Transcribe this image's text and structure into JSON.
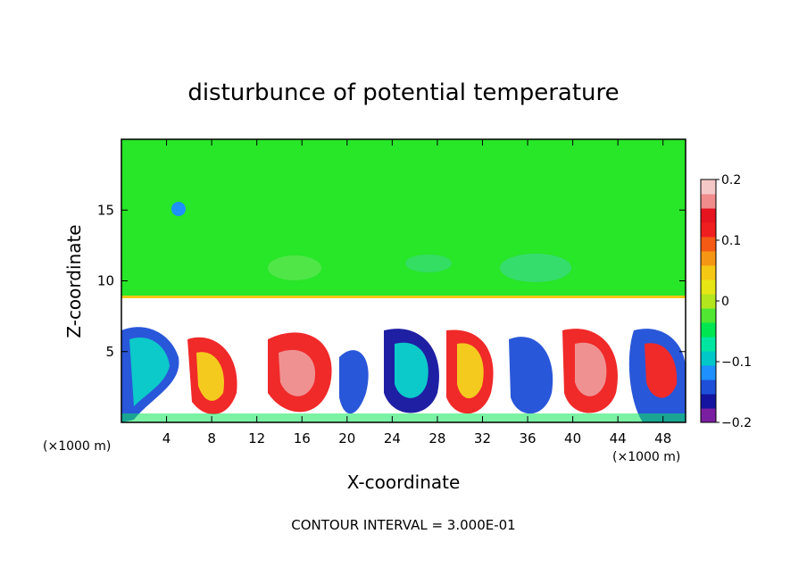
{
  "chart_data": {
    "type": "heatmap",
    "title": "disturbunce of potential temperature",
    "xlabel": "X-coordinate",
    "ylabel": "Z-coordinate",
    "x_unit_left": "(×1000 m)",
    "x_unit_right": "(×1000 m)",
    "footer": "CONTOUR INTERVAL = 3.000E-01",
    "xlim": [
      0,
      50
    ],
    "ylim": [
      0,
      20
    ],
    "x_ticks": [
      4,
      8,
      12,
      16,
      20,
      24,
      28,
      32,
      36,
      40,
      44,
      48
    ],
    "y_ticks": [
      5,
      10,
      15
    ],
    "colorbar": {
      "min": -0.2,
      "max": 0.2,
      "tick_values": [
        0.2,
        0.1,
        0,
        -0.1,
        -0.2
      ],
      "tick_labels": [
        "0.2",
        "0.1",
        "0",
        "−0.1",
        "−0.2"
      ],
      "colors": [
        "#7a1fa2",
        "#1414a0",
        "#1e4fd8",
        "#1e90ff",
        "#00c8c8",
        "#00e6a0",
        "#00e650",
        "#50e632",
        "#b4e61e",
        "#e6e614",
        "#f5c814",
        "#f59614",
        "#f55a14",
        "#f01e1e",
        "#e6141e",
        "#f08c8c",
        "#f5c8c8"
      ]
    },
    "contour_interval": 0.3,
    "description_layers": {
      "upper_region_value": 0,
      "boundary_layer_top_z": 9
    }
  }
}
